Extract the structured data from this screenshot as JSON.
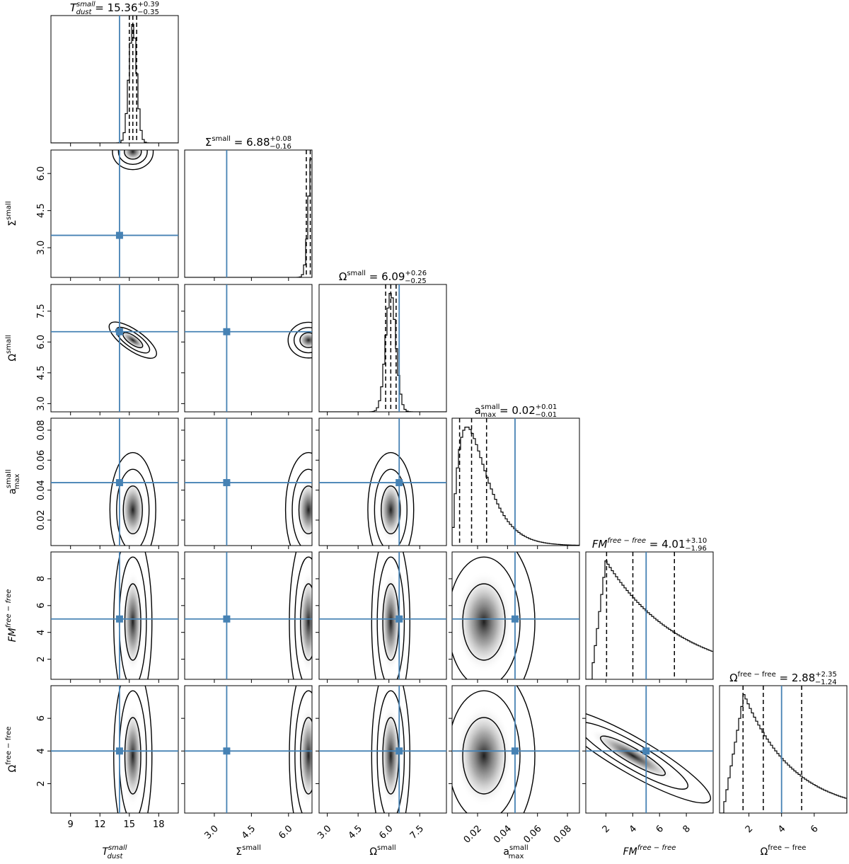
{
  "chart_data": {
    "type": "corner",
    "parameters": [
      {
        "key": "T",
        "label": "T",
        "label_sup": "small",
        "label_sub": "dust",
        "italic": true,
        "title": {
          "median": "15.36",
          "plus": "+0.39",
          "minus": "−0.35"
        },
        "range": [
          7,
          20
        ],
        "ticks": [
          "9",
          "12",
          "15",
          "18"
        ],
        "tick_values": [
          9,
          12,
          15,
          18
        ],
        "truth": 14,
        "quantiles": [
          15.0,
          15.36,
          15.75
        ]
      },
      {
        "key": "Sigma",
        "label": "Σ",
        "label_sup": "small",
        "label_sub": "",
        "italic": false,
        "title": {
          "median": "6.88",
          "plus": "+0.08",
          "minus": "−0.16"
        },
        "range": [
          1.8,
          6.95
        ],
        "ticks": [
          "3.0",
          "4.5",
          "6.0"
        ],
        "tick_values": [
          3.0,
          4.5,
          6.0
        ],
        "truth": 3.5,
        "quantiles": [
          6.72,
          6.88,
          6.96
        ]
      },
      {
        "key": "Omega",
        "label": "Ω",
        "label_sup": "small",
        "label_sub": "",
        "italic": false,
        "title": {
          "median": "6.09",
          "plus": "+0.26",
          "minus": "−0.25"
        },
        "range": [
          2.6,
          8.8
        ],
        "ticks": [
          "3.0",
          "4.5",
          "6.0",
          "7.5"
        ],
        "tick_values": [
          3.0,
          4.5,
          6.0,
          7.5
        ],
        "truth": 6.5,
        "quantiles": [
          5.84,
          6.09,
          6.35
        ]
      },
      {
        "key": "amax",
        "label": "a",
        "label_sup": "small",
        "label_sub": "max",
        "italic": false,
        "title": {
          "median": "0.02",
          "plus": "+0.01",
          "minus": "−0.01"
        },
        "range": [
          0.003,
          0.088
        ],
        "ticks": [
          "0.02",
          "0.04",
          "0.06",
          "0.08"
        ],
        "tick_values": [
          0.02,
          0.04,
          0.06,
          0.08
        ],
        "truth": 0.045,
        "quantiles": [
          0.008,
          0.016,
          0.026
        ]
      },
      {
        "key": "FM",
        "label": "FM",
        "label_sup": "free − free",
        "label_sub": "",
        "italic": true,
        "title": {
          "median": "4.01",
          "plus": "+3.10",
          "minus": "−1.96"
        },
        "range": [
          0.5,
          10
        ],
        "ticks": [
          "2",
          "4",
          "6",
          "8"
        ],
        "tick_values": [
          2,
          4,
          6,
          8
        ],
        "truth": 5,
        "quantiles": [
          2.05,
          4.01,
          7.11
        ]
      },
      {
        "key": "Omegaff",
        "label": "Ω",
        "label_sup": "free − free",
        "label_sub": "",
        "italic": false,
        "title": {
          "median": "2.88",
          "plus": "+2.35",
          "minus": "−1.24"
        },
        "range": [
          0.2,
          8
        ],
        "ticks": [
          "2",
          "4",
          "6"
        ],
        "tick_values": [
          2,
          4,
          6
        ],
        "truth": 4,
        "quantiles": [
          1.64,
          2.88,
          5.23
        ]
      }
    ],
    "title_equals": "=",
    "truth_color": "#4682b4",
    "contour_color": "#000000",
    "quantile_line_style": "dashed"
  }
}
